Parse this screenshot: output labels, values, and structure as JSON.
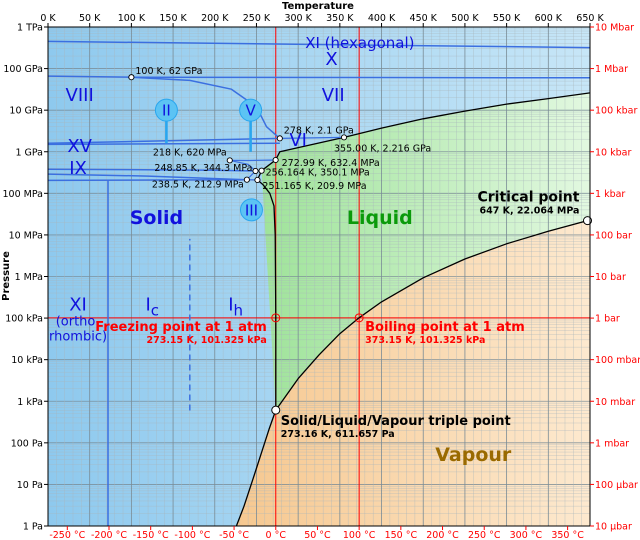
{
  "chart_data": {
    "type": "line",
    "title": "",
    "top_axis": {
      "label": "Temperature",
      "unit": "K",
      "range": [
        0,
        650
      ],
      "ticks": [
        {
          "value": 0,
          "label": "0 K"
        },
        {
          "value": 50,
          "label": "50 K"
        },
        {
          "value": 100,
          "label": "100 K"
        },
        {
          "value": 150,
          "label": "150 K"
        },
        {
          "value": 200,
          "label": "200 K"
        },
        {
          "value": 250,
          "label": "250 K"
        },
        {
          "value": 300,
          "label": "300 K"
        },
        {
          "value": 350,
          "label": "350 K"
        },
        {
          "value": 400,
          "label": "400 K"
        },
        {
          "value": 450,
          "label": "450 K"
        },
        {
          "value": 500,
          "label": "500 K"
        },
        {
          "value": 550,
          "label": "550 K"
        },
        {
          "value": 600,
          "label": "600 K"
        },
        {
          "value": 650,
          "label": "650 K"
        }
      ]
    },
    "bottom_axis": {
      "unit": "°C",
      "ticks": [
        {
          "value": -250,
          "label": "-250 °C"
        },
        {
          "value": -200,
          "label": "-200 °C"
        },
        {
          "value": -150,
          "label": "-150 °C"
        },
        {
          "value": -100,
          "label": "-100 °C"
        },
        {
          "value": -50,
          "label": "-50 °C"
        },
        {
          "value": 0,
          "label": "0 °C"
        },
        {
          "value": 50,
          "label": "50 °C"
        },
        {
          "value": 100,
          "label": "100 °C"
        },
        {
          "value": 150,
          "label": "150 °C"
        },
        {
          "value": 200,
          "label": "200 °C"
        },
        {
          "value": 250,
          "label": "250 °C"
        },
        {
          "value": 300,
          "label": "300 °C"
        },
        {
          "value": 350,
          "label": "350 °C"
        }
      ]
    },
    "left_axis": {
      "label": "Pressure",
      "scale": "log",
      "unit": "Pa",
      "range": [
        1,
        1000000000000.0
      ],
      "ticks": [
        {
          "value": 1,
          "label": "1 Pa"
        },
        {
          "value": 10,
          "label": "10 Pa"
        },
        {
          "value": 100,
          "label": "100 Pa"
        },
        {
          "value": 1000,
          "label": "1 kPa"
        },
        {
          "value": 10000,
          "label": "10 kPa"
        },
        {
          "value": 100000,
          "label": "100 kPa"
        },
        {
          "value": 1000000,
          "label": "1 MPa"
        },
        {
          "value": 10000000,
          "label": "10 MPa"
        },
        {
          "value": 100000000,
          "label": "100 MPa"
        },
        {
          "value": 1000000000,
          "label": "1 GPa"
        },
        {
          "value": 10000000000,
          "label": "10 GPa"
        },
        {
          "value": 100000000000,
          "label": "100 GPa"
        },
        {
          "value": 1000000000000,
          "label": "1 TPa"
        }
      ]
    },
    "right_axis": {
      "scale": "log",
      "unit": "bar",
      "ticks": [
        {
          "value": 1e-05,
          "label": "10 µbar"
        },
        {
          "value": 0.0001,
          "label": "100 µbar"
        },
        {
          "value": 0.001,
          "label": "1 mbar"
        },
        {
          "value": 0.01,
          "label": "10 mbar"
        },
        {
          "value": 0.1,
          "label": "100 mbar"
        },
        {
          "value": 1,
          "label": "1 bar"
        },
        {
          "value": 10,
          "label": "10 bar"
        },
        {
          "value": 100,
          "label": "100 bar"
        },
        {
          "value": 1000,
          "label": "1 kbar"
        },
        {
          "value": 10000,
          "label": "10 kbar"
        },
        {
          "value": 100000,
          "label": "100 kbar"
        },
        {
          "value": 1000000,
          "label": "1 Mbar"
        },
        {
          "value": 10000000,
          "label": "10 Mbar"
        }
      ]
    },
    "grid": true,
    "colors": {
      "solid": "#9fd3f0",
      "liquid": "#b3ecb0",
      "vapour": "#fbdcb4",
      "solid_boundary": "#3b6fe0",
      "phase_boundary": "#000000",
      "reference_line": "#ff0000",
      "solid_label": "#1111dd",
      "liquid_label": "#0a9a0a",
      "vapour_label": "#9a6a00"
    },
    "regions": [
      {
        "name": "Solid",
        "T_K": 130,
        "P_Pa": 25000000.0
      },
      {
        "name": "Liquid",
        "T_K": 398,
        "P_Pa": 25000000.0
      },
      {
        "name": "Vapour",
        "T_K": 510,
        "P_Pa": 50
      }
    ],
    "ice_phases": [
      {
        "label": "XI (hexagonal)",
        "T_K": 374,
        "P_Pa": 400000000000.0
      },
      {
        "label": "X",
        "T_K": 340,
        "P_Pa": 160000000000.0
      },
      {
        "label": "VIII",
        "T_K": 38,
        "P_Pa": 22000000000.0
      },
      {
        "label": "VII",
        "T_K": 342,
        "P_Pa": 22000000000.0
      },
      {
        "label": "XV",
        "T_K": 38,
        "P_Pa": 1300000000.0
      },
      {
        "label": "VI",
        "T_K": 300,
        "P_Pa": 1800000000.0
      },
      {
        "label": "IX",
        "T_K": 36,
        "P_Pa": 380000000.0
      },
      {
        "label": "XI",
        "T_K": 36,
        "P_Pa": 200000.0
      },
      {
        "label": "(ortho-",
        "T_K": 36,
        "P_Pa": 80000.0
      },
      {
        "label": "rhombic)",
        "T_K": 36,
        "P_Pa": 35000.0
      }
    ],
    "circled_phases": [
      {
        "label": "II",
        "T_K": 142,
        "P_Pa": 10000000000.0
      },
      {
        "label": "V",
        "T_K": 243,
        "P_Pa": 10000000000.0
      },
      {
        "label": "III",
        "T_K": 244,
        "P_Pa": 40000000.0
      }
    ],
    "ice_ic": {
      "main": "I",
      "sub": "c",
      "T_K": 125,
      "P_Pa": 200000.0
    },
    "ice_ih": {
      "main": "I",
      "sub": "h",
      "T_K": 225,
      "P_Pa": 200000.0
    },
    "boundaries": {
      "sublimation": [
        [
          226,
          1
        ],
        [
          235,
          3
        ],
        [
          245,
          12
        ],
        [
          255,
          50
        ],
        [
          265,
          210
        ],
        [
          273.16,
          611.657
        ]
      ],
      "vaporization": [
        [
          273.16,
          611.657
        ],
        [
          300,
          3500
        ],
        [
          325,
          13000
        ],
        [
          350,
          42000
        ],
        [
          373.15,
          101325
        ],
        [
          400,
          245000
        ],
        [
          450,
          930000
        ],
        [
          500,
          2640000
        ],
        [
          550,
          6100000
        ],
        [
          600,
          12300000
        ],
        [
          647,
          22064000
        ]
      ],
      "melting_ih": [
        [
          273.16,
          611.657
        ],
        [
          273.15,
          101325
        ],
        [
          272.5,
          10000000.0
        ],
        [
          271,
          50000000.0
        ],
        [
          266,
          100000000.0
        ],
        [
          258,
          160000000.0
        ],
        [
          251.165,
          209900000.0
        ]
      ],
      "melting_iii": [
        [
          251.165,
          209900000.0
        ],
        [
          256.164,
          350100000.0
        ]
      ],
      "melting_v": [
        [
          256.164,
          350100000.0
        ],
        [
          272.99,
          632400000.0
        ]
      ],
      "melting_vi": [
        [
          272.99,
          632400000.0
        ],
        [
          278,
          1000000000.0
        ],
        [
          355,
          2216000000.0
        ]
      ],
      "melting_vii": [
        [
          355,
          2216000000.0
        ],
        [
          400,
          3700000000.0
        ],
        [
          450,
          6200000000.0
        ],
        [
          500,
          9500000000.0
        ],
        [
          550,
          14000000000.0
        ],
        [
          600,
          19000000000.0
        ],
        [
          650,
          26000000000.0
        ]
      ],
      "vii_viii": [
        [
          100,
          62000000000.0
        ],
        [
          170,
          52000000000.0
        ],
        [
          220,
          32000000000.0
        ],
        [
          250,
          12000000000.0
        ],
        [
          262,
          4000000000.0
        ],
        [
          278,
          2100000000.0
        ]
      ],
      "vi_vii": [
        [
          278,
          2100000000.0
        ],
        [
          355,
          2216000000.0
        ]
      ],
      "vi_v": [
        [
          218,
          620000000.0
        ],
        [
          240,
          615000000.0
        ],
        [
          272.99,
          632400000.0
        ]
      ],
      "xv_line": [
        [
          0,
          1600000000.0
        ],
        [
          278,
          2100000000.0
        ]
      ],
      "xi_x": [
        [
          0,
          450000000000.0
        ],
        [
          650,
          320000000000.0
        ]
      ],
      "x_vii": [
        [
          0,
          66000000000.0
        ],
        [
          100,
          62000000000.0
        ],
        [
          650,
          60000000000.0
        ]
      ],
      "viii_vi": [
        [
          0,
          1500000000.0
        ],
        [
          278,
          1600000000.0
        ]
      ],
      "ii_v": [
        [
          248.85,
          344300000.0
        ],
        [
          240,
          500000000.0
        ],
        [
          218,
          620000000.0
        ]
      ],
      "ix_line": [
        [
          0,
          380000000.0
        ],
        [
          200,
          360000000.0
        ],
        [
          248.85,
          344300000.0
        ]
      ],
      "ix_lower": [
        [
          0,
          290000000.0
        ],
        [
          120,
          260000000.0
        ],
        [
          238.5,
          212900000.0
        ]
      ],
      "iii_ih": [
        [
          238.5,
          212900000.0
        ],
        [
          251.165,
          209900000.0
        ]
      ],
      "ii_ih": [
        [
          0,
          205000000.0
        ],
        [
          238.5,
          212900000.0
        ]
      ],
      "ii_iii": [
        [
          238.5,
          212900000.0
        ],
        [
          248.85,
          344300000.0
        ]
      ],
      "iii_v": [
        [
          248.85,
          344300000.0
        ],
        [
          256.164,
          350100000.0
        ]
      ],
      "xi_ih": [
        [
          72,
          1
        ],
        [
          72,
          200000000.0
        ]
      ],
      "ic_ih_dashed": [
        [
          170,
          600
        ],
        [
          170,
          8000000.0
        ]
      ],
      "ii_stub": [
        [
          142,
          1600000000.0
        ],
        [
          142,
          7000000000.0
        ]
      ],
      "v_stub": [
        [
          243,
          1000000000.0
        ],
        [
          243,
          7000000000.0
        ]
      ]
    },
    "points": [
      {
        "T_K": 100,
        "P_Pa": 62000000000.0,
        "label": "100 K, 62 GPa"
      },
      {
        "T_K": 278,
        "P_Pa": 2100000000.0,
        "label": "278 K, 2.1 GPa"
      },
      {
        "T_K": 355,
        "P_Pa": 2216000000.0,
        "label": "355.00 K, 2.216 GPa"
      },
      {
        "T_K": 218,
        "P_Pa": 620000000.0,
        "label": "218 K, 620 MPa"
      },
      {
        "T_K": 272.99,
        "P_Pa": 632400000.0,
        "label": "272.99 K, 632.4 MPa"
      },
      {
        "T_K": 248.85,
        "P_Pa": 344300000.0,
        "label": "248.85 K, 344.3 MPa"
      },
      {
        "T_K": 256.164,
        "P_Pa": 350100000.0,
        "label": "256.164 K, 350.1 MPa"
      },
      {
        "T_K": 238.5,
        "P_Pa": 212900000.0,
        "label": "238.5 K, 212.9 MPa"
      },
      {
        "T_K": 251.165,
        "P_Pa": 209900000.0,
        "label": "251.165 K, 209.9 MPa"
      }
    ],
    "special_points": [
      {
        "T_K": 647,
        "P_Pa": 22064000,
        "title": "Critical point",
        "detail": "647 K, 22.064 MPa",
        "color": "#000000"
      },
      {
        "T_K": 273.15,
        "P_Pa": 101325,
        "title": "Freezing point at 1 atm",
        "detail": "273.15 K, 101.325 kPa",
        "color": "#ff0000"
      },
      {
        "T_K": 373.15,
        "P_Pa": 101325,
        "title": "Boiling point at 1 atm",
        "detail": "373.15 K, 101.325 kPa",
        "color": "#ff0000"
      },
      {
        "T_K": 273.16,
        "P_Pa": 611.657,
        "title": "Solid/Liquid/Vapour triple point",
        "detail": "273.16 K, 611.657 Pa",
        "color": "#000000"
      }
    ],
    "reference_lines": [
      {
        "orientation": "vertical",
        "T_K": 273.15
      },
      {
        "orientation": "vertical",
        "T_K": 373.15
      },
      {
        "orientation": "horizontal",
        "P_Pa": 101325
      }
    ]
  }
}
